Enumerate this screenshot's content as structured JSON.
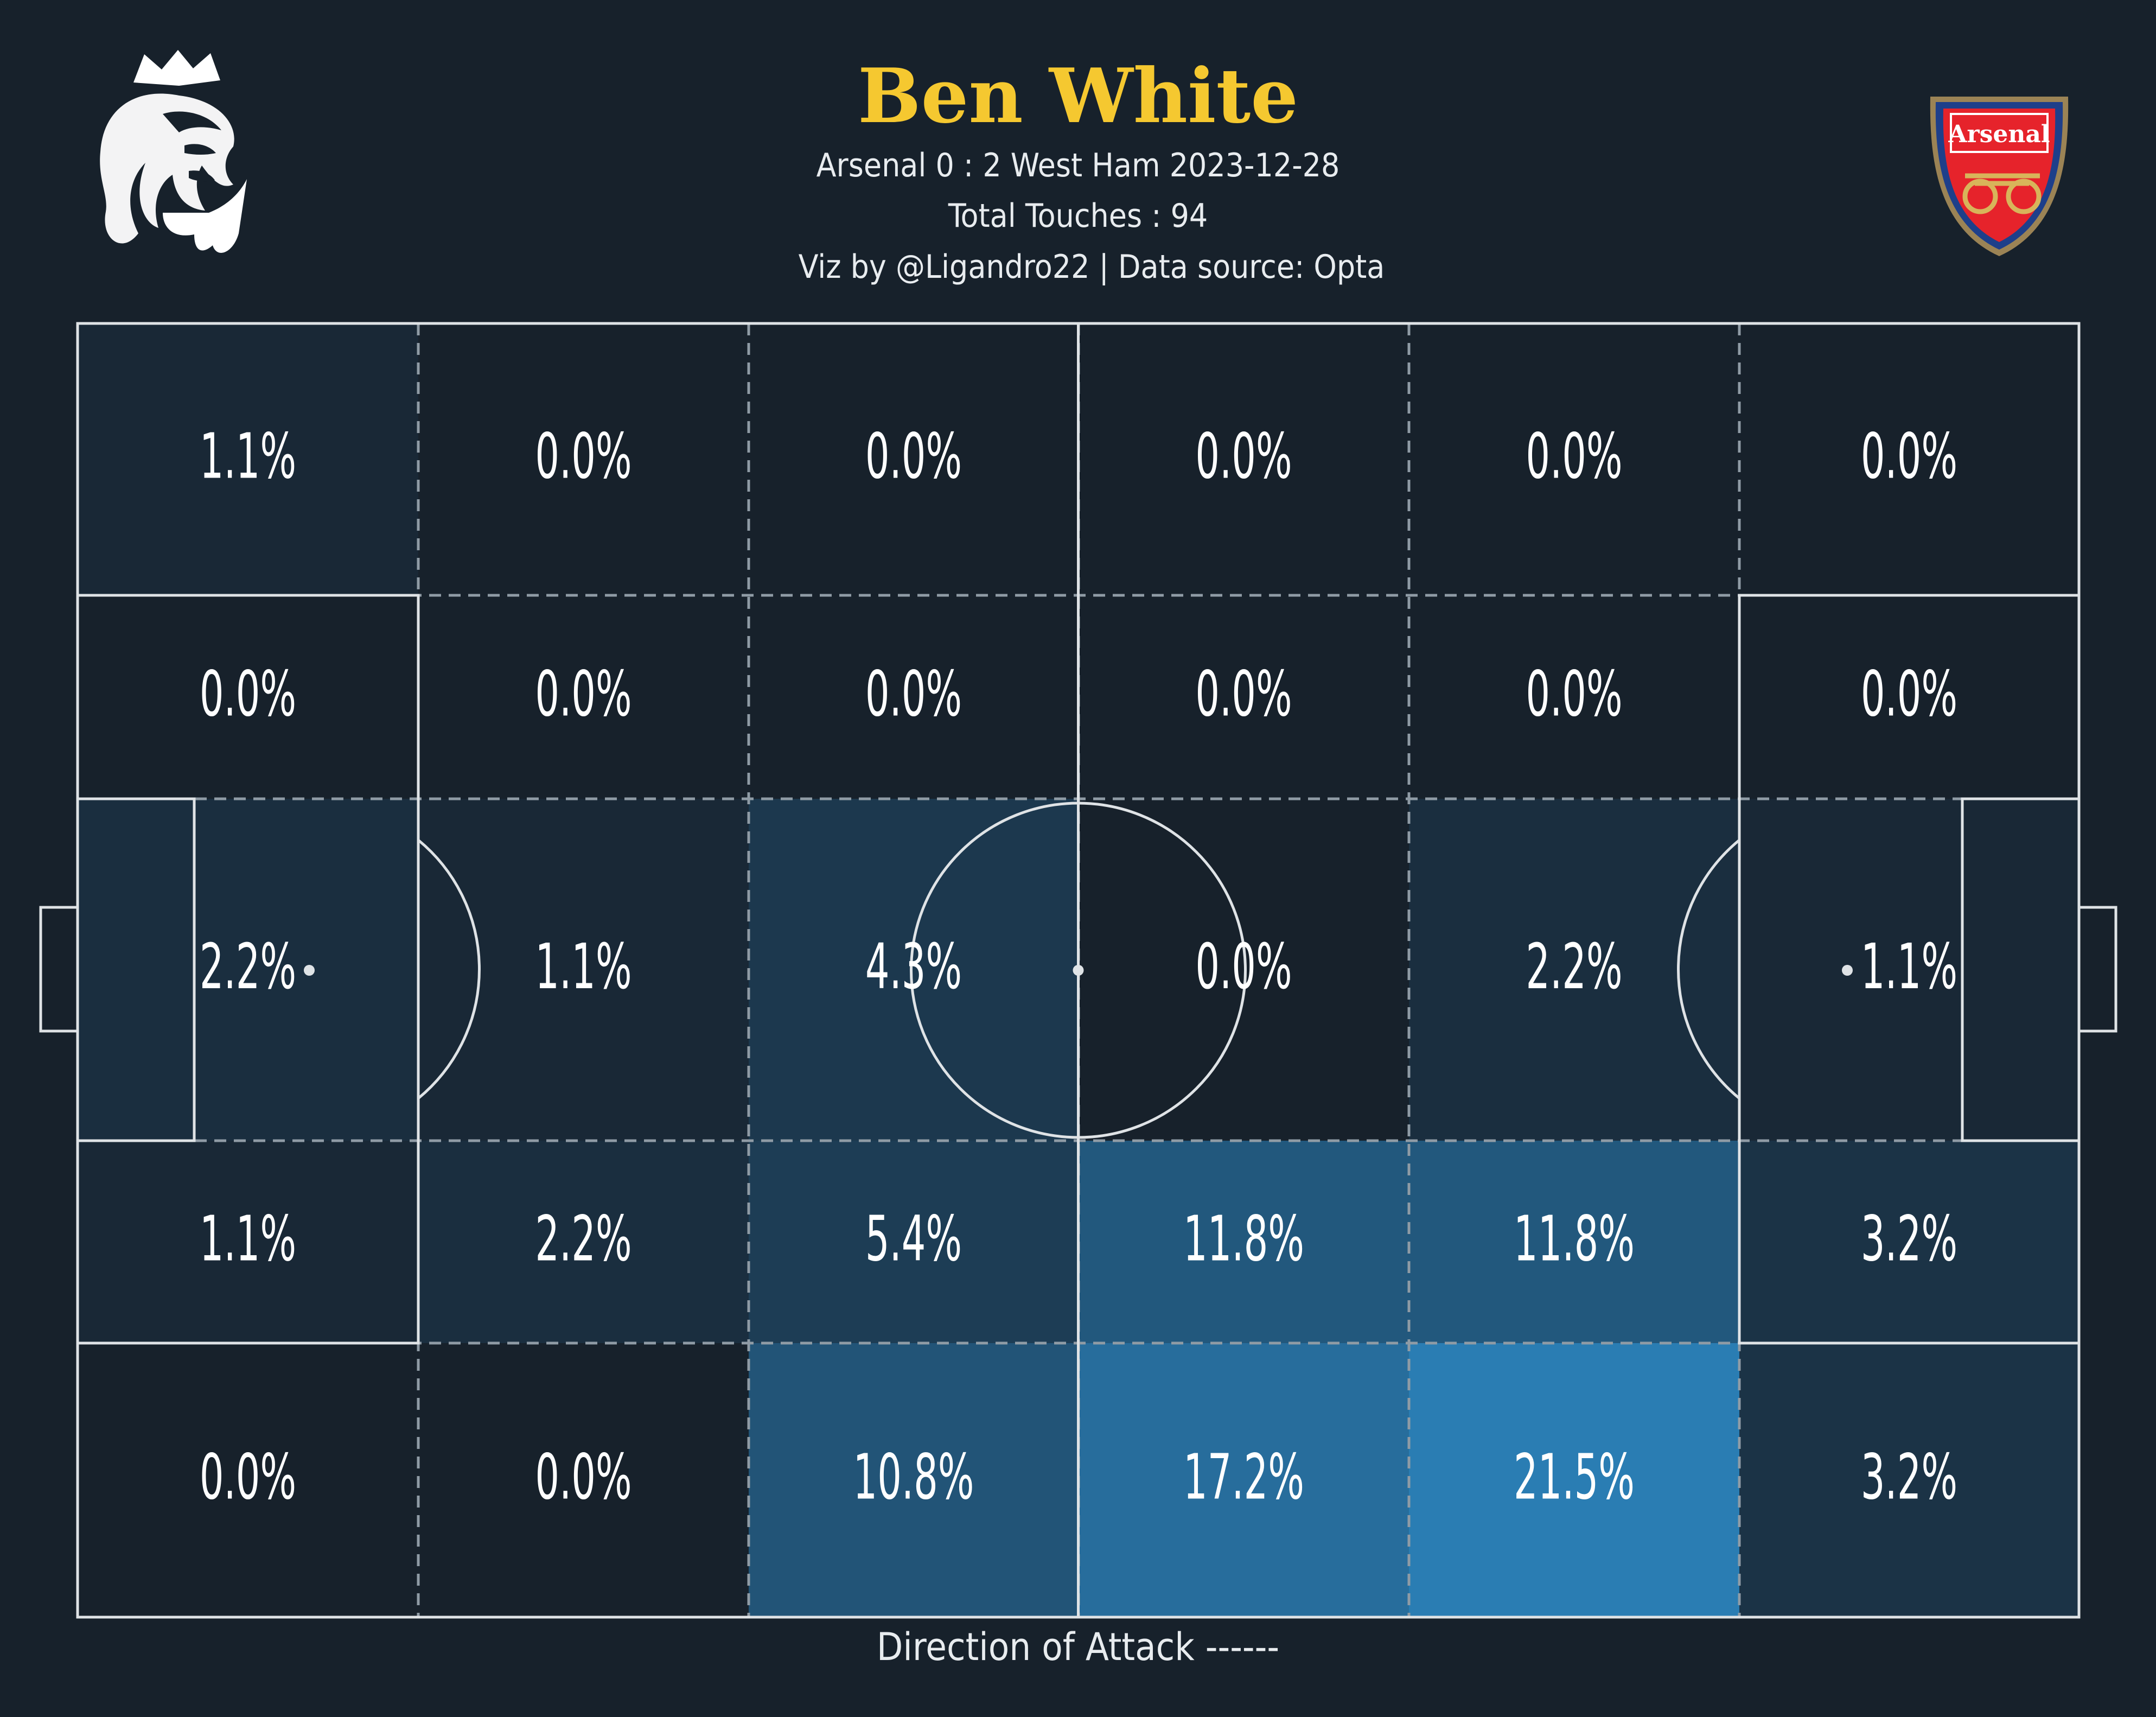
{
  "header": {
    "player_name": "Ben White",
    "match": "Arsenal 0 : 2 West Ham   2023-12-28",
    "total_touches": "Total Touches : 94",
    "credit": "Viz by @Ligandro22 | Data source: Opta",
    "left_logo_icon": "premier-league-lion-icon",
    "right_logo_icon": "arsenal-crest-icon",
    "crest_text": "Arsenal"
  },
  "footer": {
    "direction_label": "Direction of Attack ------"
  },
  "colors": {
    "background": "#17212b",
    "title": "#f5c830",
    "heat_low": "#17212b",
    "heat_high": "#2a7db3",
    "pitch_lines": "#dfe3e6",
    "zone_lines": "#8f9ba5"
  },
  "chart_data": {
    "type": "heatmap",
    "title": "Ben White",
    "row_order": "top-to-bottom",
    "column_order": "left-to-right",
    "cells": [
      [
        1.1,
        0.0,
        0.0,
        0.0,
        0.0,
        0.0
      ],
      [
        0.0,
        0.0,
        0.0,
        0.0,
        0.0,
        0.0
      ],
      [
        2.2,
        1.1,
        4.3,
        0.0,
        2.2,
        1.1
      ],
      [
        1.1,
        2.2,
        5.4,
        11.8,
        11.8,
        3.2
      ],
      [
        0.0,
        0.0,
        10.8,
        17.2,
        21.5,
        3.2
      ]
    ],
    "labels": [
      [
        "1.1%",
        "0.0%",
        "0.0%",
        "0.0%",
        "0.0%",
        "0.0%"
      ],
      [
        "0.0%",
        "0.0%",
        "0.0%",
        "0.0%",
        "0.0%",
        "0.0%"
      ],
      [
        "2.2%",
        "1.1%",
        "4.3%",
        "0.0%",
        "2.2%",
        "1.1%"
      ],
      [
        "1.1%",
        "2.2%",
        "5.4%",
        "11.8%",
        "11.8%",
        "3.2%"
      ],
      [
        "0.0%",
        "0.0%",
        "10.8%",
        "17.2%",
        "21.5%",
        "3.2%"
      ]
    ],
    "unit": "%",
    "grid": "dashed",
    "legend": "none"
  }
}
